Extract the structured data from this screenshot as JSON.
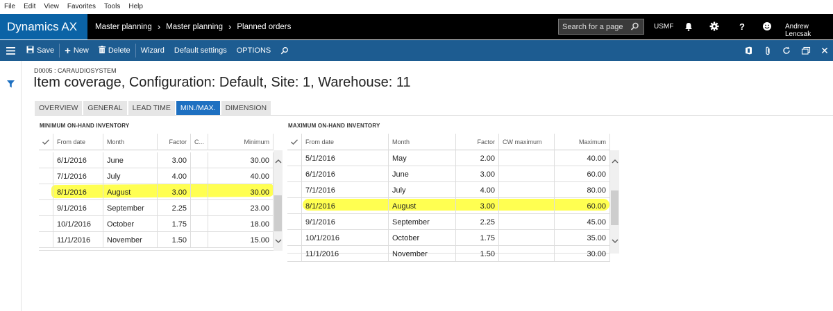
{
  "menu": [
    "File",
    "Edit",
    "View",
    "Favorites",
    "Tools",
    "Help"
  ],
  "app": {
    "brand": "Dynamics AX",
    "breadcrumbs": [
      "Master planning",
      "Master planning",
      "Planned orders"
    ],
    "search_placeholder": "Search for a page",
    "company": "USMF",
    "user": "Andrew Lencsak"
  },
  "toolbar": {
    "save": "Save",
    "new": "New",
    "delete": "Delete",
    "wizard": "Wizard",
    "default_settings": "Default settings",
    "options": "OPTIONS"
  },
  "page": {
    "record_id": "D0005 : CARAUDIOSYSTEM",
    "title": "Item coverage, Configuration: Default, Site: 1, Warehouse: 11"
  },
  "tabs": [
    "OVERVIEW",
    "GENERAL",
    "LEAD TIME",
    "MIN./MAX.",
    "DIMENSION"
  ],
  "active_tab": "MIN./MAX.",
  "min_grid": {
    "heading": "MINIMUM ON-HAND INVENTORY",
    "columns": [
      "From date",
      "Month",
      "Factor",
      "C...",
      "Minimum"
    ],
    "rows": [
      [
        "6/1/2016",
        "June",
        "3.00",
        "",
        "30.00"
      ],
      [
        "7/1/2016",
        "July",
        "4.00",
        "",
        "40.00"
      ],
      [
        "8/1/2016",
        "August",
        "3.00",
        "",
        "30.00"
      ],
      [
        "9/1/2016",
        "September",
        "2.25",
        "",
        "23.00"
      ],
      [
        "10/1/2016",
        "October",
        "1.75",
        "",
        "18.00"
      ],
      [
        "11/1/2016",
        "November",
        "1.50",
        "",
        "15.00"
      ]
    ]
  },
  "max_grid": {
    "heading": "MAXIMUM ON-HAND INVENTORY",
    "columns": [
      "From date",
      "Month",
      "Factor",
      "CW maximum",
      "Maximum"
    ],
    "rows": [
      [
        "5/1/2016",
        "May",
        "2.00",
        "",
        "40.00"
      ],
      [
        "6/1/2016",
        "June",
        "3.00",
        "",
        "60.00"
      ],
      [
        "7/1/2016",
        "July",
        "4.00",
        "",
        "80.00"
      ],
      [
        "8/1/2016",
        "August",
        "3.00",
        "",
        "60.00"
      ],
      [
        "9/1/2016",
        "September",
        "2.25",
        "",
        "45.00"
      ],
      [
        "10/1/2016",
        "October",
        "1.75",
        "",
        "35.00"
      ],
      [
        "11/1/2016",
        "November",
        "1.50",
        "",
        "30.00"
      ]
    ]
  },
  "colors": {
    "brand": "#0b63a6",
    "actionbar": "#1d5c91",
    "active_tab": "#1e70c1",
    "highlight": "#ffff33"
  }
}
